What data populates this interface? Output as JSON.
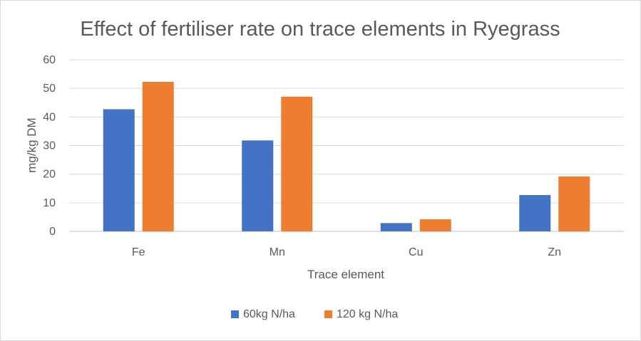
{
  "chart_data": {
    "type": "bar",
    "title": "Effect of fertiliser rate on trace elements in Ryegrass",
    "xlabel": "Trace element",
    "ylabel": "mg/kg DM",
    "categories": [
      "Fe",
      "Mn",
      "Cu",
      "Zn"
    ],
    "series": [
      {
        "name": "60kg N/ha",
        "values": [
          42.7,
          31.8,
          2.9,
          12.7
        ],
        "color": "#4472c4"
      },
      {
        "name": "120 kg N/ha",
        "values": [
          52.3,
          47.1,
          4.2,
          19.2
        ],
        "color": "#ed7d31"
      }
    ],
    "ylim": [
      0,
      60
    ],
    "yticks": [
      0,
      10,
      20,
      30,
      40,
      50,
      60
    ],
    "grid": true,
    "legend_position": "bottom"
  }
}
